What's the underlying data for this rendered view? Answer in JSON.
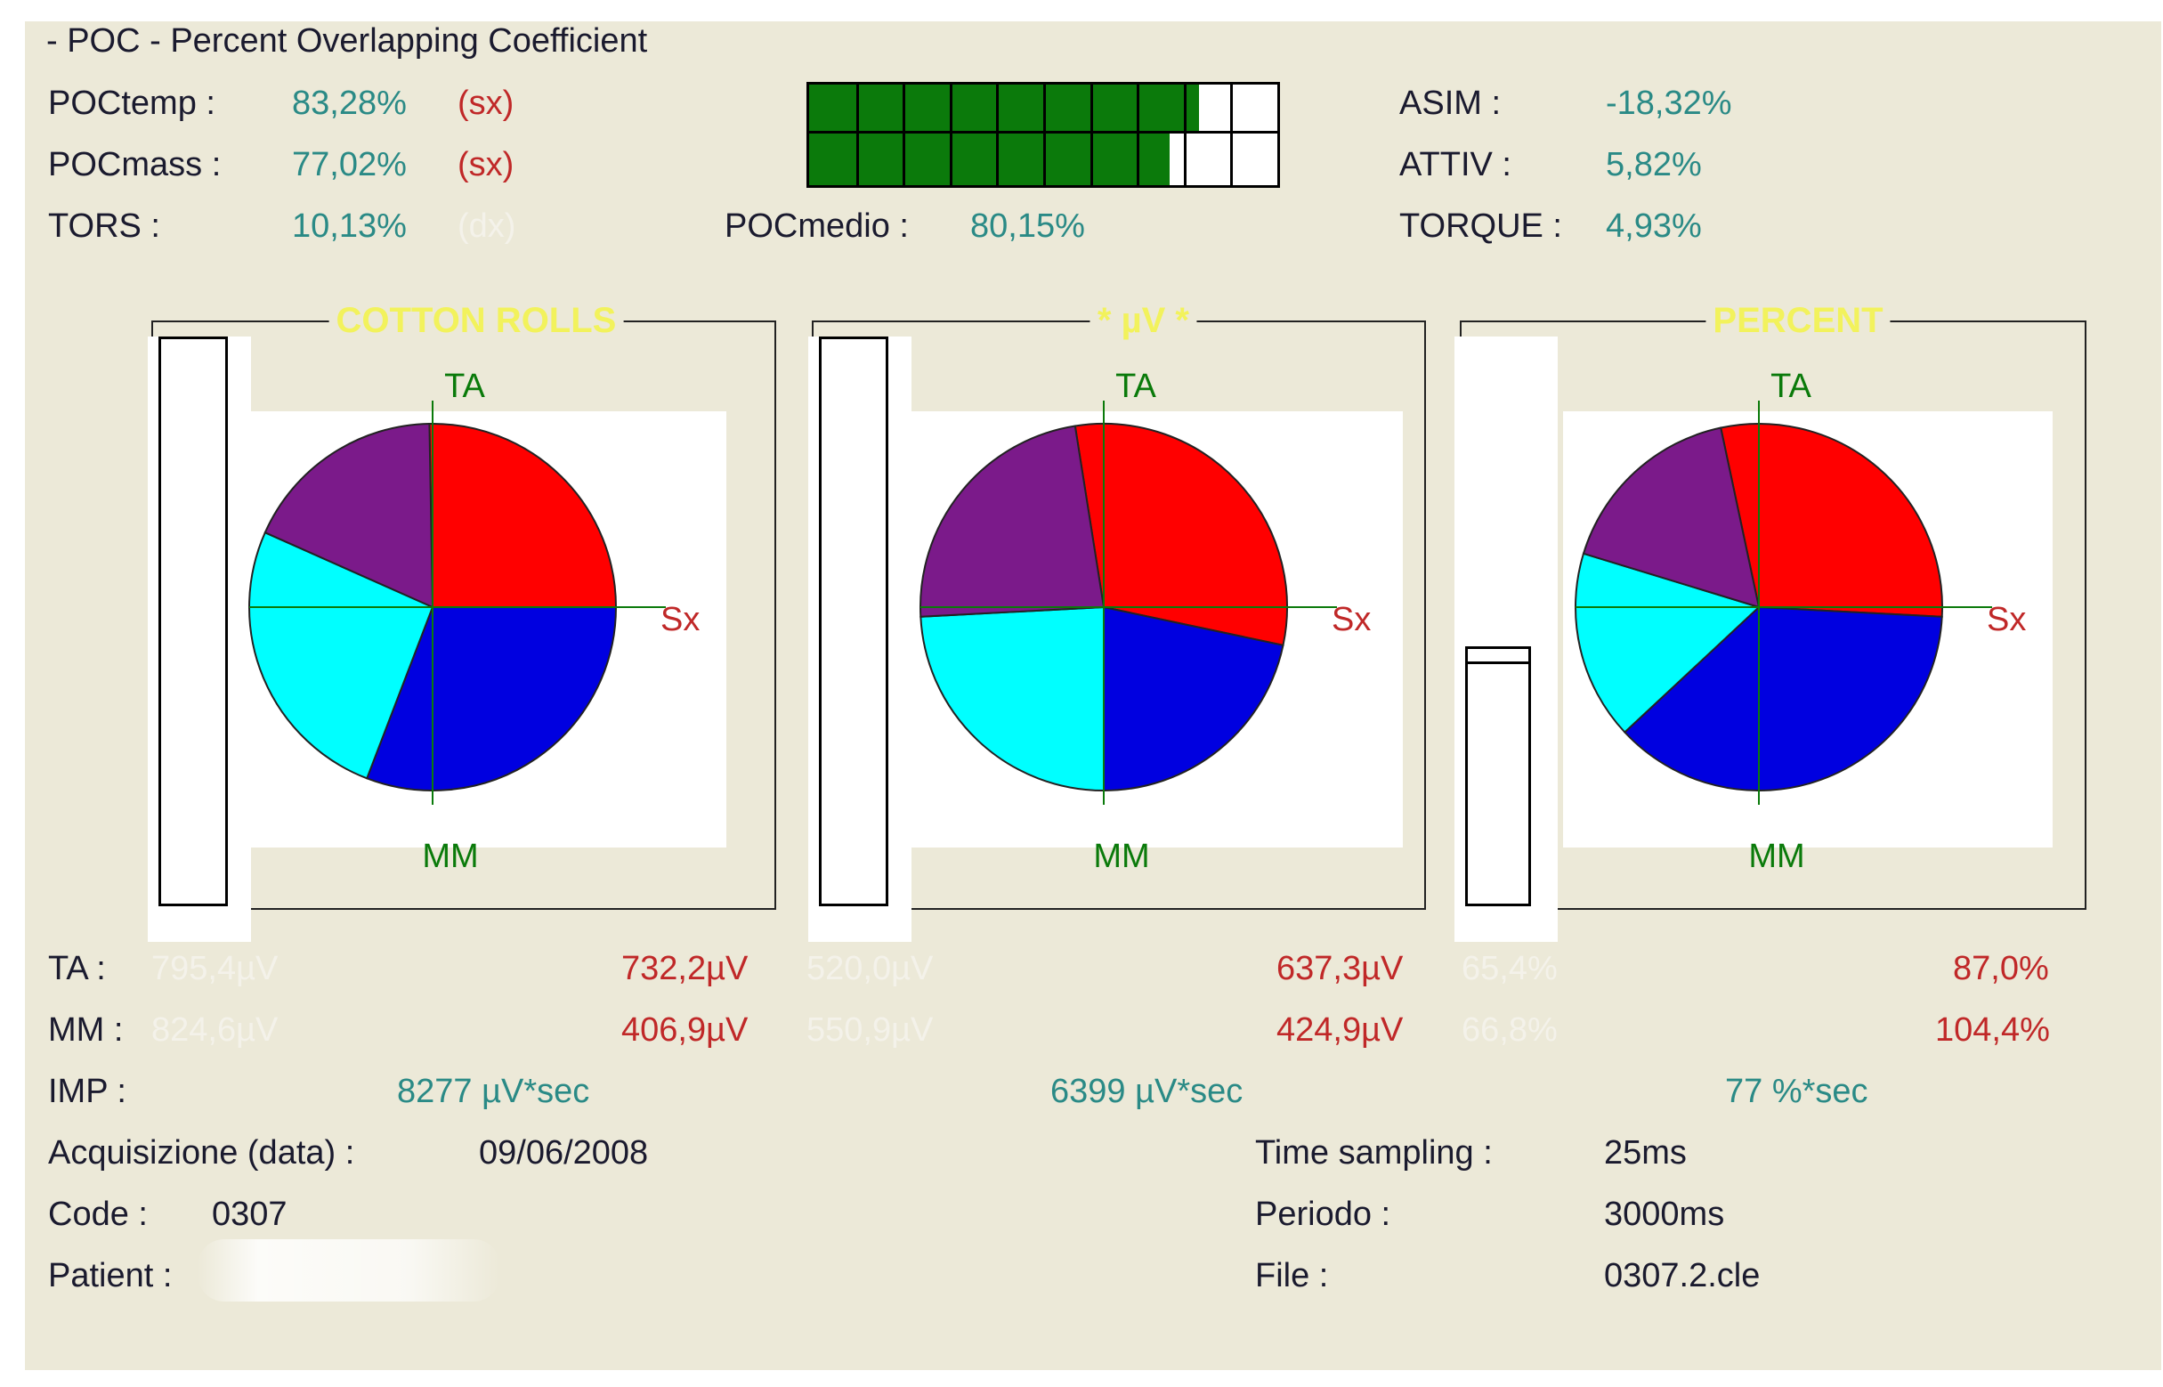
{
  "header": {
    "title": "- POC - Percent Overlapping Coefficient"
  },
  "metrics_left": [
    {
      "label": "POCtemp :",
      "value": "83,28%",
      "side": "(sx)",
      "side_faded": false
    },
    {
      "label": "POCmass :",
      "value": "77,02%",
      "side": "(sx)",
      "side_faded": false
    },
    {
      "label": "TORS :",
      "value": "10,13%",
      "side": "(dx)",
      "side_faded": true
    }
  ],
  "progress": {
    "poctemp_fraction": 0.8328,
    "pocmass_fraction": 0.7702,
    "segments": 10,
    "fill_color": "#0b7a0b"
  },
  "pocmedio": {
    "label": "POCmedio :",
    "value": "80,15%"
  },
  "metrics_right": [
    {
      "label": "ASIM :",
      "value": "-18,32%"
    },
    {
      "label": "ATTIV :",
      "value": "5,82%"
    },
    {
      "label": "TORQUE :",
      "value": "4,93%"
    }
  ],
  "colors": {
    "ta_left": "#7b1a8a",
    "ta_right": "#ff0000",
    "mm_right": "#0000e0",
    "mm_left": "#00ffff",
    "axis": "#0a7a0a",
    "value_teal": "#2a8a86",
    "value_red": "#c02828",
    "title_yellow": "#f2f25c"
  },
  "axis_labels": {
    "top": "TA",
    "bottom": "MM",
    "right": "Sx"
  },
  "charts": [
    {
      "title": "COTTON ROLLS",
      "slices": [
        {
          "muscle": "TA",
          "side": "right",
          "angle_deg": 91
        },
        {
          "muscle": "MM",
          "side": "right",
          "angle_deg": 111
        },
        {
          "muscle": "MM",
          "side": "left",
          "angle_deg": 93
        },
        {
          "muscle": "TA",
          "side": "left",
          "angle_deg": 65
        }
      ],
      "side_bar_level": 0,
      "ta_left": "795,4µV",
      "ta_right": "732,2µV",
      "mm_left": "824,6µV",
      "mm_right": "406,9µV",
      "imp": "8277 µV*sec"
    },
    {
      "title": "* µV *",
      "slices": [
        {
          "muscle": "TA",
          "side": "right",
          "angle_deg": 111
        },
        {
          "muscle": "MM",
          "side": "right",
          "angle_deg": 78
        },
        {
          "muscle": "MM",
          "side": "left",
          "angle_deg": 87
        },
        {
          "muscle": "TA",
          "side": "left",
          "angle_deg": 84
        }
      ],
      "side_bar_level": 0,
      "ta_left": "520,0µV",
      "ta_right": "637,3µV",
      "mm_left": "550,9µV",
      "mm_right": "424,9µV",
      "imp": "6399 µV*sec"
    },
    {
      "title": "PERCENT",
      "slices": [
        {
          "muscle": "TA",
          "side": "right",
          "angle_deg": 105
        },
        {
          "muscle": "MM",
          "side": "right",
          "angle_deg": 134
        },
        {
          "muscle": "MM",
          "side": "left",
          "angle_deg": 60
        },
        {
          "muscle": "TA",
          "side": "left",
          "angle_deg": 61
        }
      ],
      "side_bar_level": 0.94,
      "ta_left": "65,4%",
      "ta_right": "87,0%",
      "mm_left": "66,8%",
      "mm_right": "104,4%",
      "imp": "77 %*sec"
    }
  ],
  "row_labels": {
    "ta": "TA :",
    "mm": "MM :",
    "imp": "IMP :"
  },
  "footer_left": {
    "acquisition_label": "Acquisizione (data) :",
    "acquisition_value": "09/06/2008",
    "code_label": "Code :",
    "code_value": "0307",
    "patient_label": "Patient :"
  },
  "footer_right": {
    "sampling_label": "Time sampling :",
    "sampling_value": "25ms",
    "period_label": "Periodo :",
    "period_value": "3000ms",
    "file_label": "File :",
    "file_value": "0307.2.cle"
  }
}
